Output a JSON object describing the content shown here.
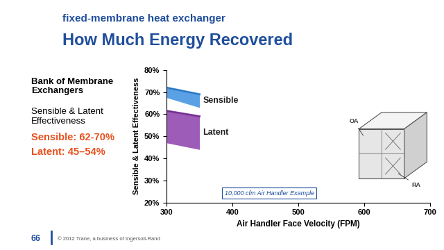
{
  "chart_data": {
    "type": "area",
    "subtitle": "fixed-membrane heat exchanger",
    "title": "How Much Energy Recovered",
    "x_label": "Air Handler Face Velocity (FPM)",
    "y_label": "Sensible & Latent Effectiveness",
    "x": [
      300,
      350
    ],
    "series": [
      {
        "name": "Sensible",
        "color": "#3d8fe0",
        "low": [
          67.5,
          63
        ],
        "high": [
          72,
          69
        ]
      },
      {
        "name": "Latent",
        "color": "#8b3fab",
        "low": [
          47,
          44
        ],
        "high": [
          61.5,
          59
        ]
      }
    ],
    "xlim": [
      300,
      700
    ],
    "xticks": [
      300,
      400,
      500,
      600,
      700
    ],
    "ylim": [
      20,
      80
    ],
    "yticks": [
      {
        "value": 20,
        "label": "20%"
      },
      {
        "value": 30,
        "label": "30%"
      },
      {
        "value": 40,
        "label": "40%"
      },
      {
        "value": 50,
        "label": "50%"
      },
      {
        "value": 60,
        "label": "60%"
      },
      {
        "value": 70,
        "label": "70%"
      },
      {
        "value": 80,
        "label": "80%"
      }
    ],
    "grid": false,
    "annotations": [
      "10,000 cfm Air Handler Example"
    ]
  },
  "slide": {
    "heading_lines": [
      "Bank of Membrane",
      "Exchangers"
    ],
    "body_lines": [
      "Sensible & Latent",
      "Effectiveness"
    ],
    "highlights": [
      "Sensible: 62-70%",
      "Latent: 45–54%"
    ],
    "unit_labels": [
      "OA",
      "RA"
    ],
    "page": "66",
    "copyright": "© 2012 Trane, a business of Ingersoll-Rand"
  }
}
